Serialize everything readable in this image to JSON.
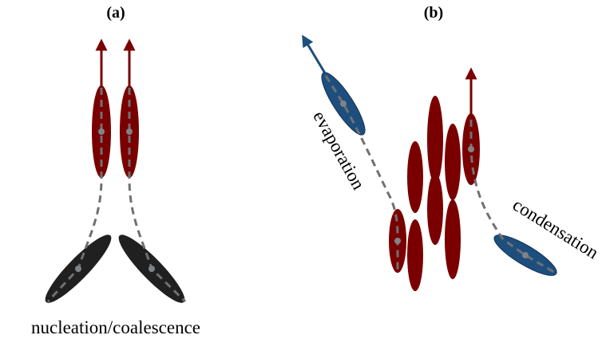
{
  "panels": [
    {
      "label": "(a)",
      "caption": "nucleation/coalescence"
    },
    {
      "label": "(b)",
      "annotations": [
        "evaporation",
        "condensation"
      ]
    }
  ]
}
